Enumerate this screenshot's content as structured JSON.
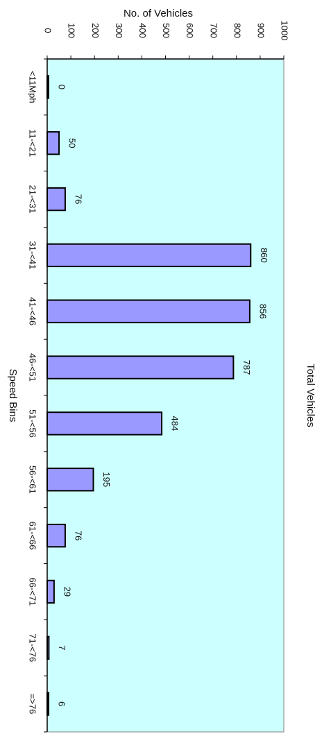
{
  "chart_data": {
    "type": "bar",
    "title": "Total Vehicles",
    "xlabel": "Speed Bins",
    "ylabel": "No. of Vehicles",
    "ylim": [
      0,
      1000
    ],
    "yticks": [
      0,
      100,
      200,
      300,
      400,
      500,
      600,
      700,
      800,
      900,
      1000
    ],
    "categories": [
      "<11Mph",
      "11-<21",
      "21-<31",
      "31-<41",
      "41-<46",
      "46-<51",
      "51-<56",
      "56-<61",
      "61-<66",
      "66-<71",
      "71-<76",
      "=>76"
    ],
    "values": [
      0,
      50,
      76,
      860,
      856,
      787,
      484,
      195,
      76,
      29,
      7,
      6
    ],
    "data_labels": [
      "0",
      "50",
      "76",
      "860",
      "856",
      "787",
      "484",
      "195",
      "76",
      "29",
      "7",
      "6"
    ],
    "grid": false,
    "legend": "none",
    "orientation": "rotated 90° clockwise",
    "colors": {
      "plot_background": "#ccffff",
      "bar_fill": "#9999ff",
      "bar_stroke": "#000000",
      "axis": "#000000",
      "plot_border": "#808080"
    }
  }
}
